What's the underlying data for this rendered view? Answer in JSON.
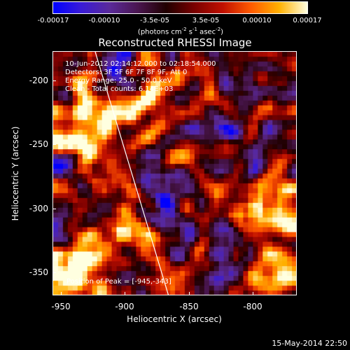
{
  "colorbar": {
    "ticks": [
      "-0.00017",
      "-0.00010",
      "-3.5e-05",
      "3.5e-05",
      "0.00010",
      "0.00017"
    ],
    "units_main": "(photons cm",
    "units_sup1": "-2",
    "units_mid": " s",
    "units_sup2": "-1",
    "units_mid2": " asec",
    "units_sup3": "-2",
    "units_end": ")"
  },
  "title": "Reconstructed RHESSI Image",
  "annotations": {
    "time_range": "10-Jun-2012 02:14:12.000 to 02:18:54.000",
    "detectors": "Detectors: 3F 5F 6F 7F 8F 9F, Att 0",
    "energy": "Energy Range: 25.0 - 50.0 keV",
    "clean": "Clean -  Total counts: 6.14E+03",
    "peak": "Position of Peak = [-945,-343]"
  },
  "axes": {
    "xlabel": "Heliocentric X (arcsec)",
    "ylabel": "Heliocentric Y (arcsec)",
    "xticks": [
      "-950",
      "-900",
      "-850",
      "-800"
    ],
    "yticks": [
      "-200",
      "-250",
      "-300",
      "-350"
    ]
  },
  "footer": "15-May-2014 22:50",
  "colors": {
    "background": "#000000",
    "colormap": [
      "#0000ff",
      "#3a1bd6",
      "#5a2a9a",
      "#4a1650",
      "#200000",
      "#7a0000",
      "#c01000",
      "#ff5a00",
      "#ffb000",
      "#ffffe0"
    ]
  }
}
